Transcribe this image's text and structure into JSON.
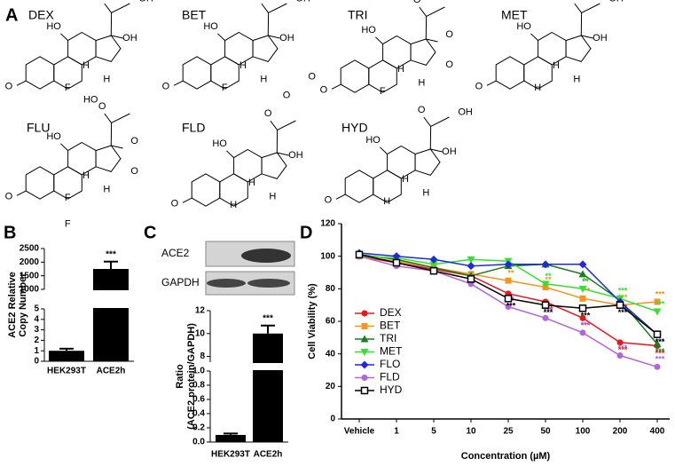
{
  "panel_labels": [
    "A",
    "B",
    "C",
    "D"
  ],
  "structures": [
    {
      "name": "DEX",
      "atoms": [
        "O",
        "HO",
        "F",
        "H",
        "H",
        "O",
        "OH",
        "OH"
      ]
    },
    {
      "name": "BET",
      "atoms": [
        "O",
        "HO",
        "F",
        "H",
        "H",
        "O",
        "OH",
        "OH"
      ]
    },
    {
      "name": "TRI",
      "atoms": [
        "O",
        "HO",
        "F",
        "H",
        "H",
        "HO",
        "O",
        "O",
        "O"
      ]
    },
    {
      "name": "MET",
      "atoms": [
        "O",
        "HO",
        "H",
        "H",
        "H",
        "O",
        "OH",
        "OH"
      ]
    },
    {
      "name": "FLU",
      "atoms": [
        "O",
        "HO",
        "F",
        "H",
        "H",
        "F",
        "HO",
        "O",
        "O",
        "O"
      ]
    },
    {
      "name": "FLD",
      "atoms": [
        "O",
        "HO",
        "H",
        "H",
        "H",
        "O",
        "O",
        "O",
        "OH"
      ]
    },
    {
      "name": "HYD",
      "atoms": [
        "O",
        "HO",
        "H",
        "H",
        "H",
        "O",
        "OH",
        "OH"
      ]
    }
  ],
  "chart_data": [
    {
      "type": "broken_bar",
      "ylabel": [
        "ACE2 Relative",
        "Copy Number"
      ],
      "categories": [
        "HEK293T",
        "ACE2h"
      ],
      "values": [
        1,
        1750
      ],
      "errors": [
        0.2,
        270
      ],
      "color": "#000000",
      "annotations": [
        null,
        "***"
      ],
      "segments": [
        {
          "ylim": [
            0,
            5
          ],
          "yticks": [
            0,
            1,
            2,
            3,
            4,
            5
          ]
        },
        {
          "ylim": [
            1000,
            2500
          ],
          "yticks": [
            1000,
            1500,
            2000,
            2500
          ]
        }
      ]
    },
    {
      "type": "broken_bar",
      "ylabel": [
        "Ratio",
        "(ACE2 protein/GAPDH)"
      ],
      "blot_labels": [
        "ACE2",
        "GAPDH"
      ],
      "categories": [
        "HEK293T",
        "ACE2h"
      ],
      "values": [
        0.1,
        10
      ],
      "errors": [
        0.02,
        0.7
      ],
      "color": "#000000",
      "annotations": [
        null,
        "***"
      ],
      "segments": [
        {
          "ylim": [
            0,
            1
          ],
          "yticks": [
            {
              "value": 0,
              "label": "0.0"
            },
            {
              "value": 0.2,
              "label": "0.2"
            },
            {
              "value": 0.4,
              "label": "0.4"
            },
            {
              "value": 0.6,
              "label": "0.6"
            },
            {
              "value": 0.8,
              "label": "0.8"
            },
            {
              "value": 1,
              "label": "1.0"
            }
          ]
        },
        {
          "ylim": [
            7.5,
            12
          ],
          "yticks": [
            8,
            10,
            12
          ]
        }
      ]
    },
    {
      "type": "line",
      "ylabel": "Cell Viability (%)",
      "xlabel": "Concentration (µM)",
      "categories": [
        "Vehicle",
        "1",
        "5",
        "10",
        "25",
        "50",
        "100",
        "200",
        "400"
      ],
      "ylim": [
        0,
        120
      ],
      "yticks": [
        0,
        20,
        40,
        60,
        80,
        100,
        120
      ],
      "series": [
        {
          "name": "DEX",
          "color": "#e8161b",
          "marker": "circle",
          "values": [
            100,
            96,
            92,
            88,
            77,
            72,
            62,
            47,
            45
          ],
          "significance": [
            null,
            null,
            null,
            null,
            "**",
            "***",
            "***",
            "***",
            "***"
          ]
        },
        {
          "name": "BET",
          "color": "#f7941d",
          "marker": "square",
          "values": [
            100,
            97,
            93,
            89,
            85,
            81,
            74,
            70,
            72
          ],
          "significance": [
            null,
            null,
            null,
            null,
            "**",
            "**",
            "***",
            "***",
            "***"
          ]
        },
        {
          "name": "TRI",
          "color": "#1e7b1e",
          "marker": "triangle-up",
          "values": [
            101,
            98,
            93,
            88,
            94,
            95,
            89,
            73,
            46
          ],
          "significance": [
            null,
            null,
            null,
            null,
            null,
            null,
            "**",
            "***",
            "***"
          ]
        },
        {
          "name": "MET",
          "color": "#33e033",
          "marker": "triangle-down",
          "values": [
            100,
            99,
            95,
            98,
            97,
            83,
            80,
            74,
            66
          ],
          "significance": [
            null,
            null,
            null,
            null,
            null,
            "**",
            "**",
            "***",
            "***"
          ]
        },
        {
          "name": "FLO",
          "color": "#1f2adb",
          "marker": "diamond",
          "values": [
            102,
            100,
            98,
            94,
            95,
            95,
            95,
            72,
            52
          ],
          "significance": [
            null,
            null,
            null,
            null,
            null,
            null,
            null,
            "***",
            "***"
          ]
        },
        {
          "name": "FLD",
          "color": "#b464d9",
          "marker": "circle",
          "values": [
            100,
            94,
            91,
            83,
            69,
            62,
            53,
            39,
            32
          ],
          "significance": [
            null,
            null,
            null,
            null,
            "**",
            "***",
            "***",
            "***",
            "***"
          ]
        },
        {
          "name": "HYD",
          "color": "#000000",
          "marker": "open-square",
          "values": [
            101,
            96,
            91,
            86,
            74,
            70,
            68,
            70,
            52
          ],
          "significance": [
            null,
            null,
            null,
            null,
            "***",
            "***",
            "***",
            "***",
            "***"
          ]
        }
      ]
    }
  ]
}
